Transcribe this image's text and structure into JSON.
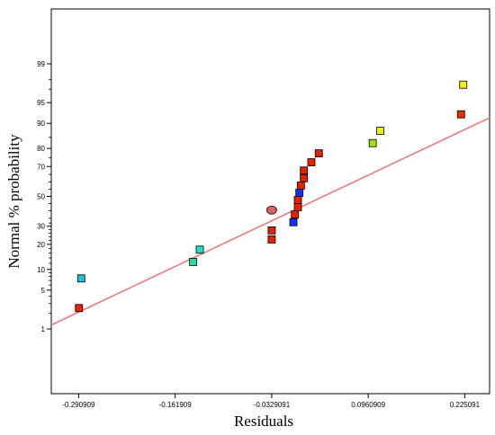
{
  "chart_data": {
    "type": "scatter",
    "title": "",
    "xlabel": "Residuals",
    "ylabel": "Normal % probability",
    "x_ticks": [
      -0.290909,
      -0.161909,
      -0.032909,
      0.096091,
      0.225091
    ],
    "x_tick_labels": [
      "-0.290909",
      "-0.161909",
      "-0.0329091",
      "0.0960909",
      "0.225091"
    ],
    "y_ticks": [
      1,
      5,
      10,
      20,
      30,
      50,
      70,
      80,
      90,
      95,
      99
    ],
    "y_tick_labels": [
      "1",
      "5",
      "10",
      "20",
      "30",
      "50",
      "70",
      "80",
      "90",
      "95",
      "99"
    ],
    "xlim": [
      -0.3275,
      0.2583
    ],
    "ylim_probability_percent": [
      0.2,
      99.9
    ],
    "grid": false,
    "fit_line": {
      "color": "#f07878",
      "points": [
        {
          "x": -0.3275,
          "y": 1.2
        },
        {
          "x": 0.2583,
          "y": 91.6
        }
      ]
    },
    "points": [
      {
        "x": -0.2905,
        "y": 2.5,
        "color": "#e82000"
      },
      {
        "x": -0.2875,
        "y": 7.5,
        "color": "#20c0e0"
      },
      {
        "x": -0.138,
        "y": 12.5,
        "color": "#20e0a0"
      },
      {
        "x": -0.129,
        "y": 17.5,
        "color": "#20e0c0"
      },
      {
        "x": -0.0329,
        "y": 22.5,
        "color": "#e82000"
      },
      {
        "x": -0.0329,
        "y": 27.5,
        "color": "#e82000"
      },
      {
        "x": -0.0039,
        "y": 32.5,
        "color": "#1030ff"
      },
      {
        "x": -0.0329,
        "y": 40.5,
        "color": "#e06060",
        "marker": "circle"
      },
      {
        "x": -0.0019,
        "y": 37.5,
        "color": "#e82000"
      },
      {
        "x": 0.0021,
        "y": 42.5,
        "color": "#e82000"
      },
      {
        "x": 0.0021,
        "y": 47.5,
        "color": "#e82000"
      },
      {
        "x": 0.0041,
        "y": 52.5,
        "color": "#1030ff"
      },
      {
        "x": 0.0061,
        "y": 57.5,
        "color": "#e82000"
      },
      {
        "x": 0.0101,
        "y": 62.5,
        "color": "#e82000"
      },
      {
        "x": 0.0101,
        "y": 67.5,
        "color": "#e82000"
      },
      {
        "x": 0.0201,
        "y": 72.5,
        "color": "#e82000"
      },
      {
        "x": 0.0301,
        "y": 77.5,
        "color": "#e82000"
      },
      {
        "x": 0.1021,
        "y": 82.5,
        "color": "#a0e010"
      },
      {
        "x": 0.1121,
        "y": 87.5,
        "color": "#f0f010"
      },
      {
        "x": 0.2201,
        "y": 92.5,
        "color": "#e83000"
      },
      {
        "x": 0.2231,
        "y": 97.5,
        "color": "#f0f010"
      }
    ]
  }
}
